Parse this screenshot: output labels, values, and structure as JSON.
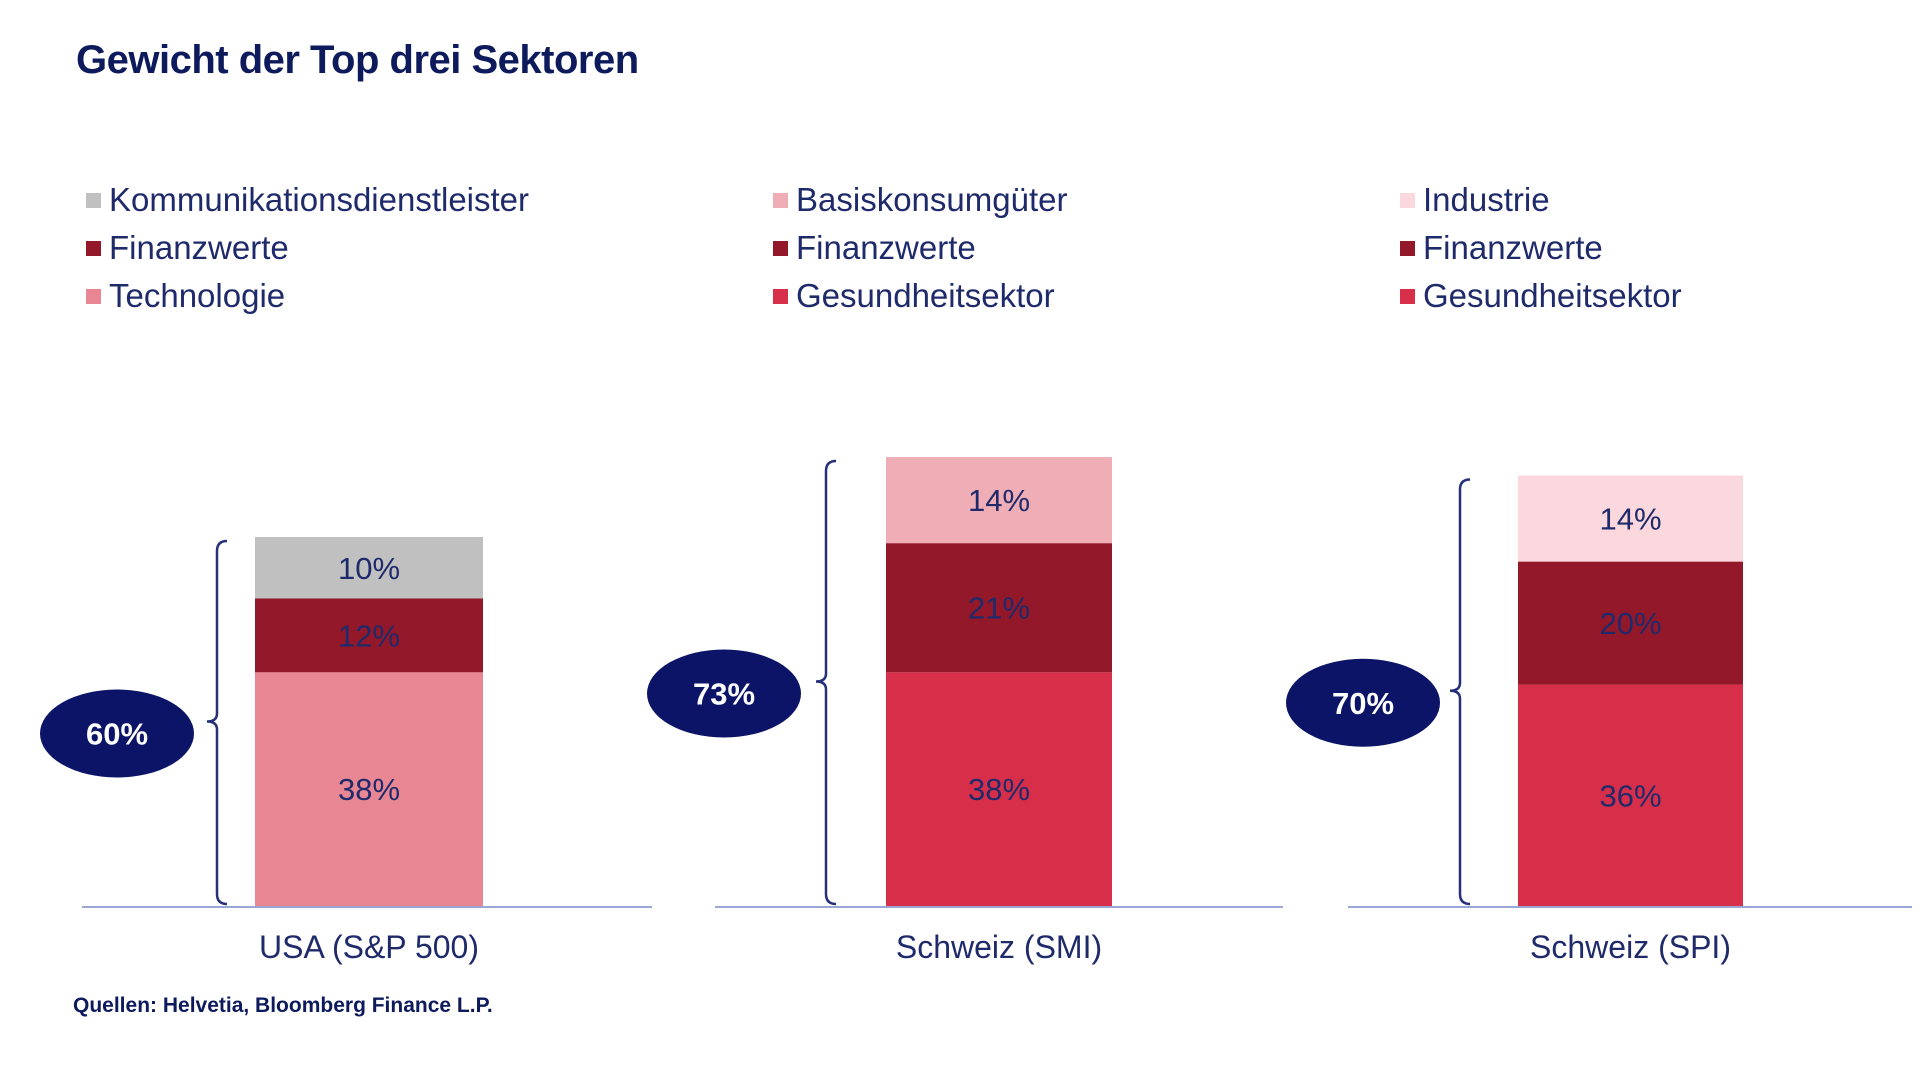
{
  "title": "Gewicht der Top drei Sektoren",
  "source": "Quellen: Helvetia, Bloomberg Finance L.P.",
  "chart_data": [
    {
      "type": "bar",
      "stacked": true,
      "category": "USA (S&P 500)",
      "total_label": "60%",
      "series": [
        {
          "name": "Technologie",
          "value": 38,
          "label": "38%",
          "color": "#e88694"
        },
        {
          "name": "Finanzwerte",
          "value": 12,
          "label": "12%",
          "color": "#93182a"
        },
        {
          "name": "Kommunikationsdienstleister",
          "value": 10,
          "label": "10%",
          "color": "#c0c0c0"
        }
      ],
      "legend": [
        "Kommunikationsdienstleister",
        "Finanzwerte",
        "Technologie"
      ]
    },
    {
      "type": "bar",
      "stacked": true,
      "category": "Schweiz (SMI)",
      "total_label": "73%",
      "series": [
        {
          "name": "Gesundheitsektor",
          "value": 38,
          "label": "38%",
          "color": "#d72f4a"
        },
        {
          "name": "Finanzwerte",
          "value": 21,
          "label": "21%",
          "color": "#93182a"
        },
        {
          "name": "Basiskonsumgüter",
          "value": 14,
          "label": "14%",
          "color": "#efadb6"
        }
      ],
      "legend": [
        "Basiskonsumgüter",
        "Finanzwerte",
        "Gesundheitsektor"
      ]
    },
    {
      "type": "bar",
      "stacked": true,
      "category": "Schweiz (SPI)",
      "total_label": "70%",
      "series": [
        {
          "name": "Gesundheitsektor",
          "value": 36,
          "label": "36%",
          "color": "#d72f4a"
        },
        {
          "name": "Finanzwerte",
          "value": 20,
          "label": "20%",
          "color": "#93182a"
        },
        {
          "name": "Industrie",
          "value": 14,
          "label": "14%",
          "color": "#fbd8dd"
        }
      ],
      "legend": [
        "Industrie",
        "Finanzwerte",
        "Gesundheitsektor"
      ]
    }
  ],
  "colors": {
    "title": "#0d1a5c",
    "text": "#1f2a6b",
    "bubble": "#0b1466",
    "brace": "#27307a",
    "axis": "#9aa6d6"
  }
}
